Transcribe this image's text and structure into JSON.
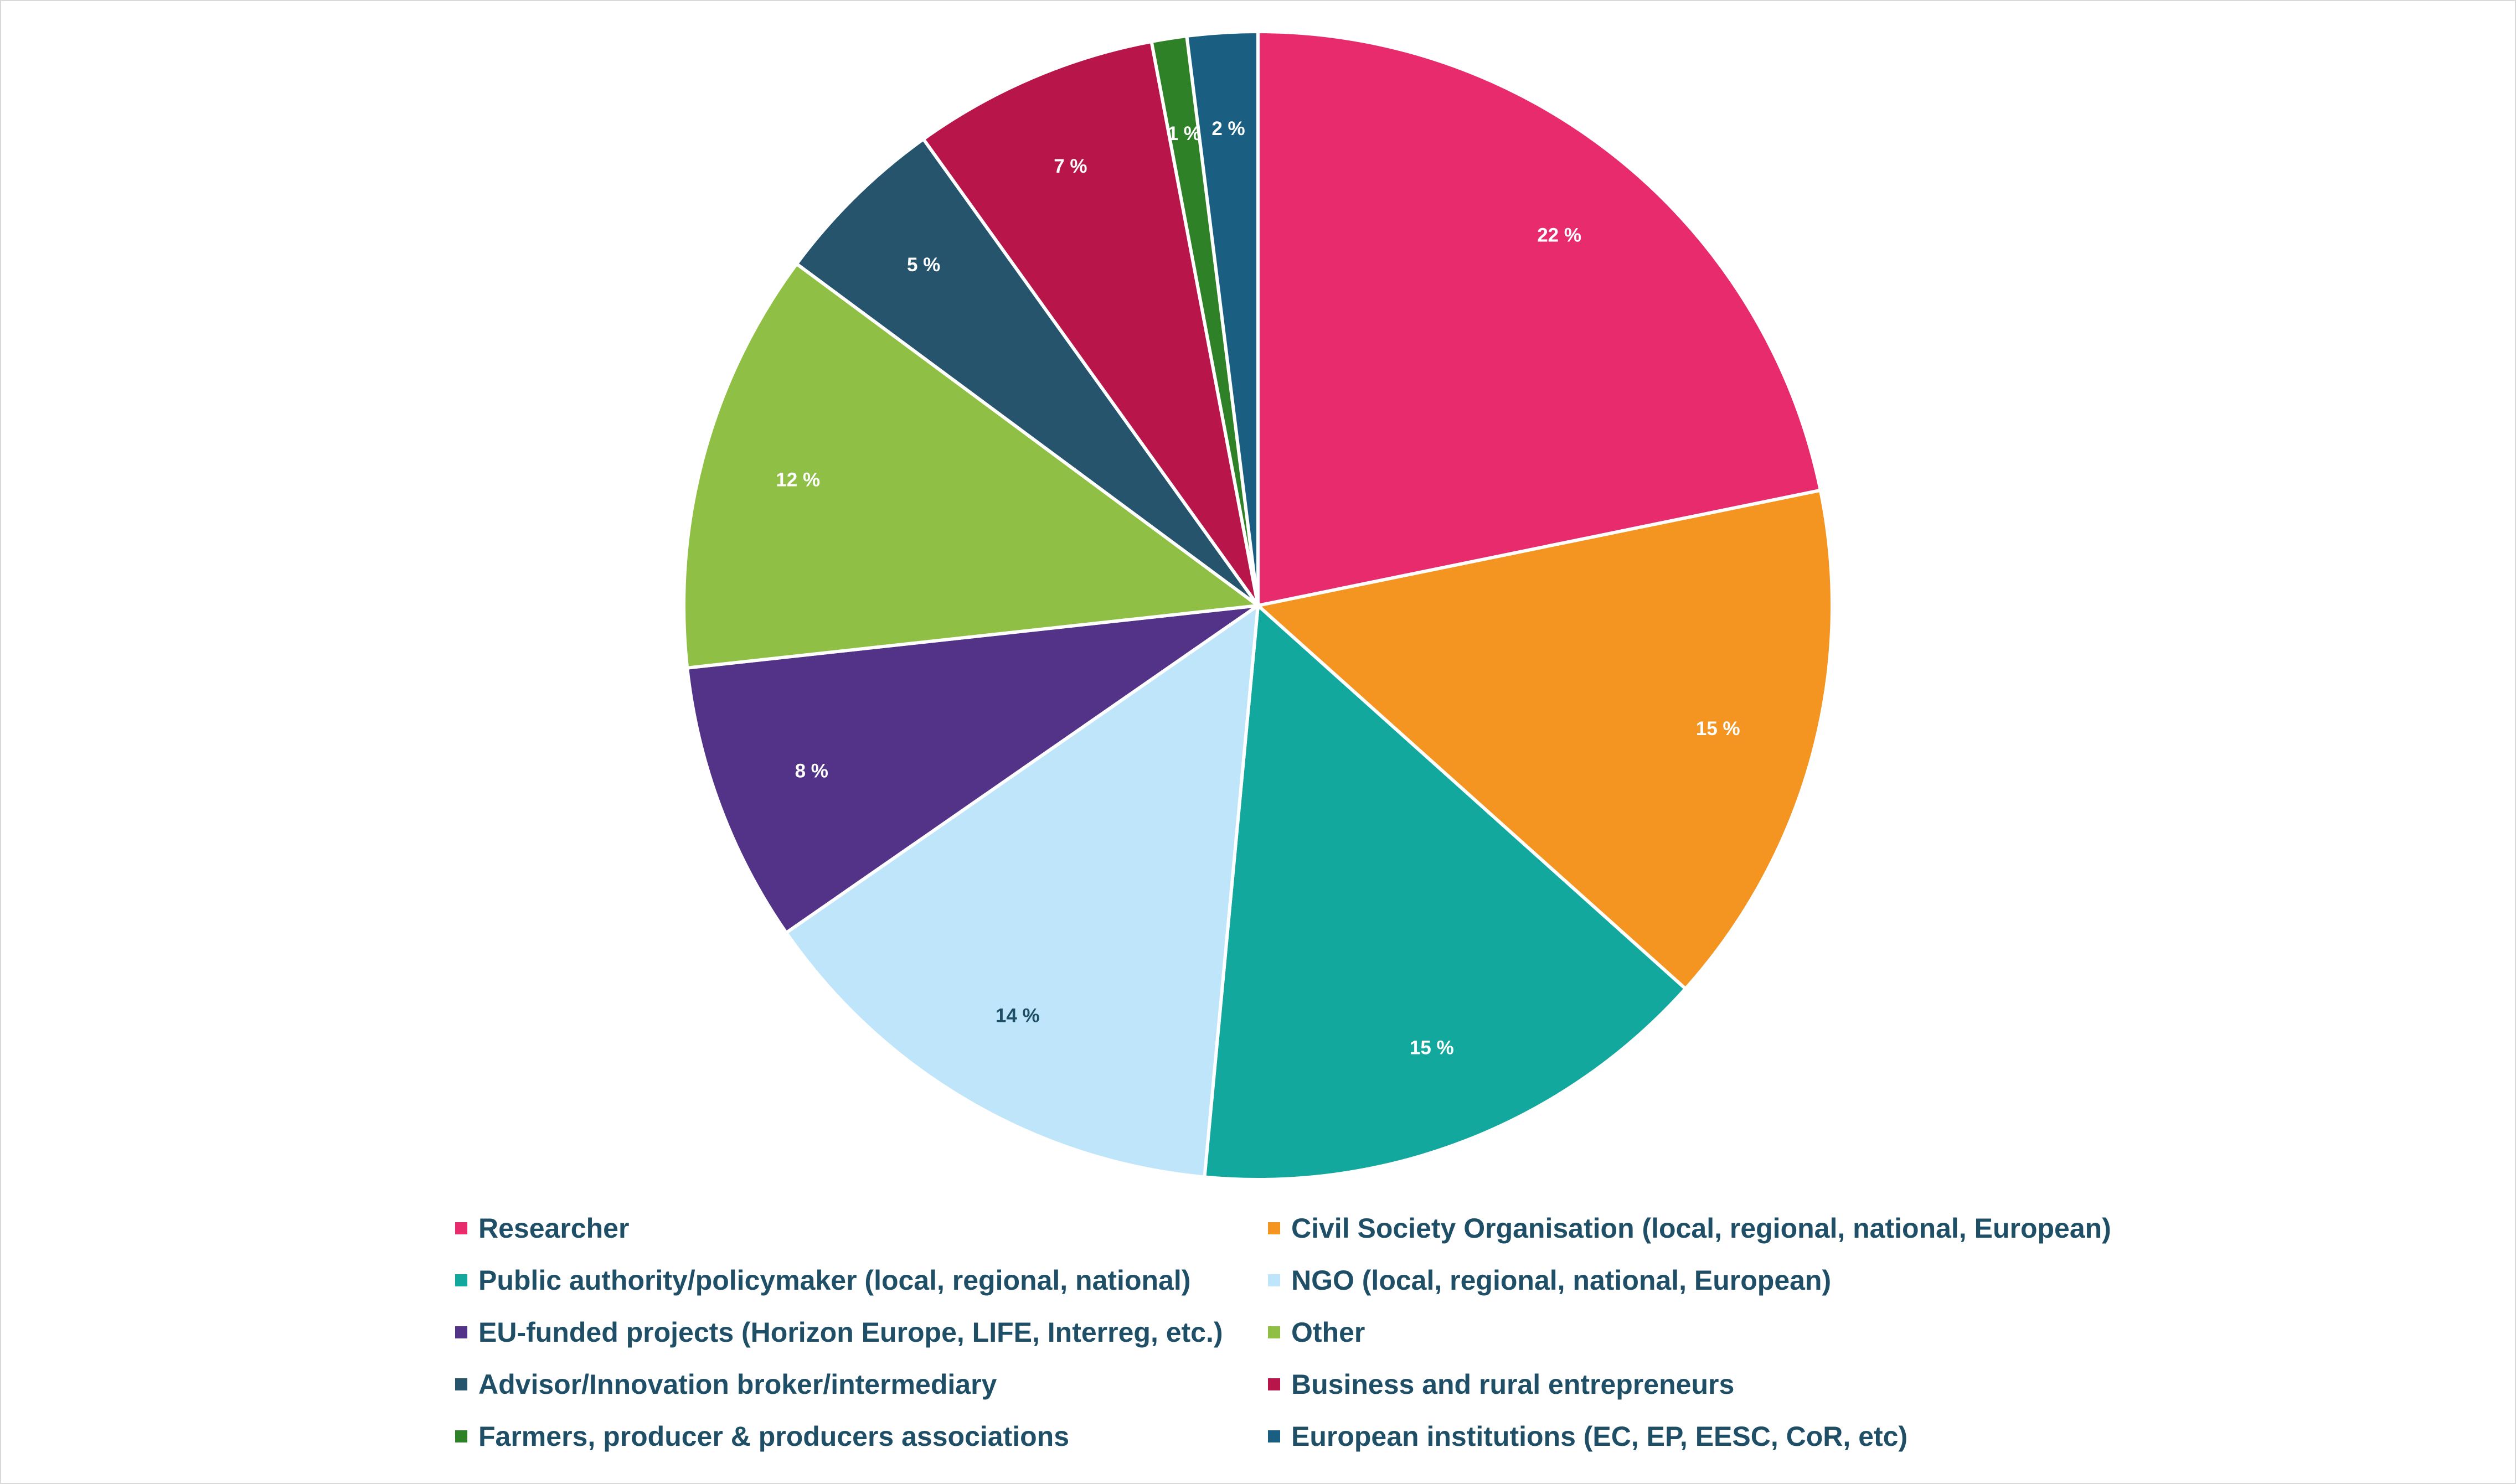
{
  "chart_data": {
    "type": "pie",
    "title": "",
    "legend_position": "bottom",
    "slices": [
      {
        "name": "Researcher",
        "value": 22,
        "label": "22 %",
        "color": "#e72b6c",
        "label_color": "#ffffff"
      },
      {
        "name": "Civil Society Organisation (local, regional, national, European)",
        "value": 15,
        "label": "15 %",
        "color": "#f39520",
        "label_color": "#ffffff"
      },
      {
        "name": "Public authority/policymaker (local, regional, national)",
        "value": 15,
        "label": "15 %",
        "color": "#13a89e",
        "label_color": "#ffffff"
      },
      {
        "name": "NGO (local, regional, national, European)",
        "value": 14,
        "label": "14 %",
        "color": "#bee5fa",
        "label_color": "#1f4e67"
      },
      {
        "name": "EU-funded projects (Horizon Europe, LIFE, Interreg, etc.)",
        "value": 8,
        "label": "8 %",
        "color": "#533388",
        "label_color": "#ffffff"
      },
      {
        "name": "Other",
        "value": 12,
        "label": "12 %",
        "color": "#8fc045",
        "label_color": "#ffffff"
      },
      {
        "name": "Advisor/Innovation broker/intermediary",
        "value": 5,
        "label": "5 %",
        "color": "#25546c",
        "label_color": "#ffffff"
      },
      {
        "name": "Business and rural entrepreneurs",
        "value": 7,
        "label": "7 %",
        "color": "#b8154a",
        "label_color": "#ffffff"
      },
      {
        "name": "Farmers, producer & producers associations",
        "value": 1,
        "label": "1 %",
        "color": "#2e8126",
        "label_color": "#ffffff"
      },
      {
        "name": "European institutions (EC, EP, EESC, CoR, etc)",
        "value": 2,
        "label": "2 %",
        "color": "#1a5f82",
        "label_color": "#ffffff"
      }
    ]
  }
}
